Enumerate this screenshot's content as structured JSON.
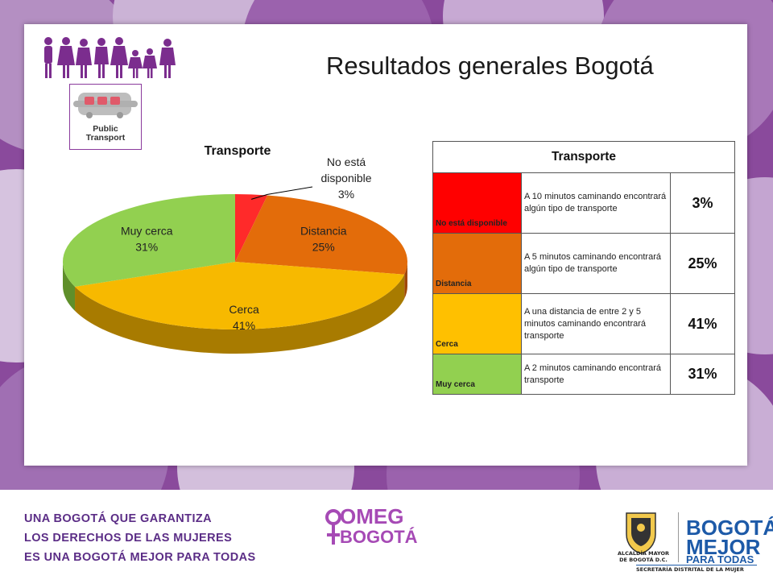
{
  "slide": {
    "title": "Resultados generales Bogotá",
    "icon_label_line1": "Public",
    "icon_label_line2": "Transport"
  },
  "colors": {
    "no_disponible": "#ff2a2a",
    "distancia": "#e36c0a",
    "cerca": "#f7b900",
    "muy_cerca": "#92d050",
    "brand_purple": "#7a3a8c",
    "brand_blue": "#1d5aa8"
  },
  "chart_data": {
    "type": "pie",
    "title": "Transporte",
    "categories": [
      "No está disponible",
      "Distancia",
      "Cerca",
      "Muy cerca"
    ],
    "values": [
      3,
      25,
      41,
      31
    ],
    "unit": "%",
    "labels": [
      {
        "name_lines": [
          "No está",
          "disponible"
        ],
        "value": "3%"
      },
      {
        "name_lines": [
          "Distancia"
        ],
        "value": "25%"
      },
      {
        "name_lines": [
          "Cerca"
        ],
        "value": "41%"
      },
      {
        "name_lines": [
          "Muy cerca"
        ],
        "value": "31%"
      }
    ]
  },
  "table": {
    "header": "Transporte",
    "rows": [
      {
        "category": "No está disponible",
        "description": "A 10 minutos caminando encontrará algún tipo de transporte",
        "percent": "3%"
      },
      {
        "category": "Distancia",
        "description": "A 5 minutos caminando encontrará algún tipo de transporte",
        "percent": "25%"
      },
      {
        "category": "Cerca",
        "description": "A una distancia de entre 2 y 5 minutos caminando encontrará transporte",
        "percent": "41%"
      },
      {
        "category": "Muy cerca",
        "description": "A 2 minutos caminando encontrará transporte",
        "percent": "31%"
      }
    ]
  },
  "footer": {
    "slogan_line1": "UNA BOGOTÁ QUE GARANTIZA",
    "slogan_line2": "LOS DERECHOS DE LAS MUJERES",
    "slogan_line3": "ES UNA BOGOTÁ MEJOR PARA TODAS",
    "omeg_line1": "OMEG",
    "omeg_line2": "BOGOTÁ",
    "alcaldia_line1": "ALCALDÍA MAYOR",
    "alcaldia_line2": "DE BOGOTÁ D.C.",
    "bogota_line1": "BOGOTÁ",
    "bogota_line2": "MEJOR",
    "bogota_line3": "PARA TODAS",
    "secretaria": "SECRETARÍA DISTRITAL DE LA MUJER"
  }
}
